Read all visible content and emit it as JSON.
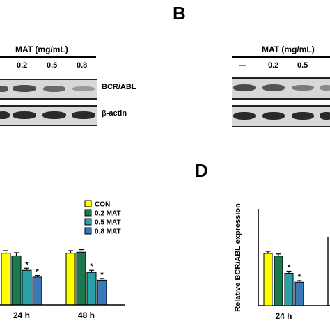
{
  "panel_labels": {
    "B": "B",
    "D": "D"
  },
  "left_blot": {
    "header": "MAT (mg/mL)",
    "lanes": [
      "0.2",
      "0.5",
      "0.8"
    ],
    "protein_1": "BCR/ABL",
    "protein_2": "β-actin"
  },
  "right_blot": {
    "header": "MAT (mg/mL)",
    "lanes": [
      "—",
      "0.2",
      "0.5"
    ]
  },
  "chart_data": [
    {
      "type": "bar",
      "legend": [
        "CON",
        "0.2 MAT",
        "0.5 MAT",
        "0.8 MAT"
      ],
      "colors": [
        "#ffff00",
        "#1a7a4c",
        "#2aa0a8",
        "#3a78b8"
      ],
      "categories": [
        "24 h",
        "48 h"
      ],
      "series": [
        {
          "name": "CON",
          "values": [
            1.0,
            1.0
          ],
          "errors": [
            0.05,
            0.05
          ]
        },
        {
          "name": "0.2 MAT",
          "values": [
            0.95,
            1.02
          ],
          "errors": [
            0.06,
            0.05
          ]
        },
        {
          "name": "0.5 MAT",
          "values": [
            0.67,
            0.63
          ],
          "errors": [
            0.04,
            0.04
          ]
        },
        {
          "name": "0.8 MAT",
          "values": [
            0.54,
            0.48
          ],
          "errors": [
            0.03,
            0.03
          ]
        }
      ],
      "significance": [
        [
          "",
          "",
          "*",
          "*"
        ],
        [
          "",
          "",
          "*",
          "*"
        ]
      ],
      "ylim": [
        0,
        1.4
      ]
    },
    {
      "type": "bar",
      "categories": [
        "24 h"
      ],
      "series": [
        {
          "name": "CON",
          "values": [
            1.0
          ],
          "errors": [
            0.04
          ]
        },
        {
          "name": "0.2 MAT",
          "values": [
            0.95
          ],
          "errors": [
            0.04
          ]
        },
        {
          "name": "0.5 MAT",
          "values": [
            0.62
          ],
          "errors": [
            0.04
          ]
        },
        {
          "name": "0.8 MAT",
          "values": [
            0.45
          ],
          "errors": [
            0.03
          ]
        }
      ],
      "significance": [
        [
          "",
          "",
          "*",
          "*"
        ]
      ],
      "ylabel": "Relative BCR/ABL expression",
      "ylim": [
        0,
        1.4
      ]
    }
  ]
}
